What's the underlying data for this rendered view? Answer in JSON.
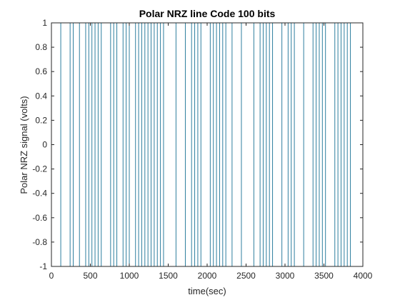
{
  "chart_data": {
    "type": "line",
    "title": "Polar NRZ line Code 100 bits",
    "xlabel": "time(sec)",
    "ylabel": "Polar NRZ signal (volts)",
    "xlim": [
      0,
      4000
    ],
    "ylim": [
      -1,
      1
    ],
    "xticks": [
      0,
      500,
      1000,
      1500,
      2000,
      2500,
      3000,
      3500,
      4000
    ],
    "yticks": [
      1,
      0.8,
      0.6,
      0.4,
      0.2,
      0,
      -0.2,
      -0.4,
      -0.6,
      -0.8,
      -1
    ],
    "xtick_labels": [
      "0",
      "500",
      "1000",
      "1500",
      "2000",
      "2500",
      "3000",
      "3500",
      "4000"
    ],
    "ytick_labels": [
      "1",
      "0.8",
      "0.6",
      "0.4",
      "0.2",
      "0",
      "-0.2",
      "-0.4",
      "-0.6",
      "-0.8",
      "-1"
    ],
    "grid": false,
    "line_color": "#2f7f9f",
    "bit_duration": 40,
    "bits": [
      1,
      1,
      1,
      -1,
      -1,
      -1,
      1,
      -1,
      -1,
      1,
      1,
      -1,
      1,
      -1,
      1,
      -1,
      1,
      1,
      1,
      -1,
      1,
      -1,
      -1,
      1,
      -1,
      1,
      1,
      -1,
      1,
      -1,
      1,
      -1,
      1,
      -1,
      1,
      -1,
      1,
      1,
      1,
      1,
      -1,
      -1,
      -1,
      1,
      1,
      -1,
      1,
      -1,
      1,
      1,
      1,
      -1,
      1,
      -1,
      1,
      -1,
      1,
      1,
      -1,
      -1,
      -1,
      1,
      1,
      1,
      1,
      -1,
      -1,
      1,
      -1,
      1,
      -1,
      1,
      1,
      1,
      -1,
      -1,
      1,
      -1,
      1,
      1,
      1,
      -1,
      -1,
      -1,
      1,
      -1,
      1,
      -1,
      1,
      1,
      1,
      -1,
      1,
      -1,
      1,
      -1,
      1,
      1,
      1,
      1
    ]
  }
}
